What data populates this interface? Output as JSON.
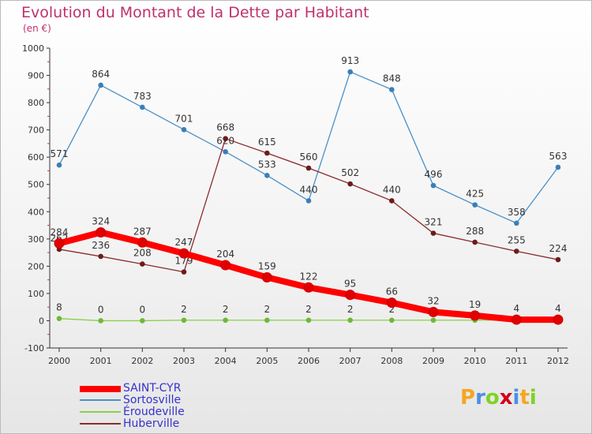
{
  "chart_data": {
    "type": "line",
    "title": "Evolution du Montant de la Dette par Habitant",
    "subtitle": "(en €)",
    "ylim": [
      -100,
      1000
    ],
    "yticks": [
      -100,
      0,
      100,
      200,
      300,
      400,
      500,
      600,
      700,
      800,
      900,
      1000
    ],
    "ytick_labels": [
      "-100",
      "0",
      "100",
      "200",
      "300",
      "400",
      "500",
      "600",
      "700",
      "800",
      "900",
      "1000"
    ],
    "x": [
      "2000",
      "2001",
      "2002",
      "2003",
      "2004",
      "2005",
      "2006",
      "2007",
      "2008",
      "2009",
      "2010",
      "2011",
      "2012"
    ],
    "grid": false,
    "legend_position": "bottom-left",
    "series": [
      {
        "name": "Sortosville",
        "color": "#4a90c8",
        "marker_color": "#3a7fb8",
        "values": [
          571,
          864,
          783,
          701,
          620,
          533,
          440,
          913,
          848,
          496,
          425,
          358,
          563
        ],
        "labels": [
          "571",
          "864",
          "783",
          "701",
          "620",
          "533",
          "440",
          "913",
          "848",
          "496",
          "425",
          "358",
          "563"
        ]
      },
      {
        "name": "Huberville",
        "color": "#8b2c2c",
        "marker_color": "#6b1c1c",
        "values": [
          262,
          236,
          208,
          179,
          668,
          615,
          560,
          502,
          440,
          321,
          288,
          255,
          224
        ],
        "labels": [
          "262",
          "236",
          "208",
          "179",
          "668",
          "615",
          "560",
          "502",
          "440",
          "321",
          "288",
          "255",
          "224"
        ]
      },
      {
        "name": "Éroudeville",
        "color": "#8ad04a",
        "marker_color": "#6fb838",
        "values": [
          8,
          0,
          0,
          2,
          2,
          2,
          2,
          2,
          2,
          2,
          2,
          2,
          2
        ],
        "labels": [
          "8",
          "0",
          "0",
          "2",
          "2",
          "2",
          "2",
          "2",
          "2",
          "",
          "",
          "",
          ""
        ]
      },
      {
        "name": "SAINT-CYR",
        "color": "#ff0000",
        "marker_color": "#e00000",
        "values": [
          284,
          324,
          287,
          247,
          204,
          159,
          122,
          95,
          66,
          32,
          19,
          4,
          4
        ],
        "labels": [
          "284",
          "324",
          "287",
          "247",
          "204",
          "159",
          "122",
          "95",
          "66",
          "32",
          "19",
          "4",
          "4"
        ]
      }
    ],
    "legend": [
      {
        "name": "SAINT-CYR",
        "color": "#ff0000"
      },
      {
        "name": "Sortosville",
        "color": "#4a90c8"
      },
      {
        "name": "Éroudeville",
        "color": "#8ad04a"
      },
      {
        "name": "Huberville",
        "color": "#8b2c2c"
      }
    ]
  },
  "branding": {
    "logo_letters": [
      "P",
      "r",
      "o",
      "x",
      "i",
      "t",
      "i"
    ],
    "logo_colors": [
      "#f5a623",
      "#4a90e2",
      "#7ed321",
      "#d0021b",
      "#4a90e2",
      "#f5a623",
      "#7ed321"
    ]
  }
}
